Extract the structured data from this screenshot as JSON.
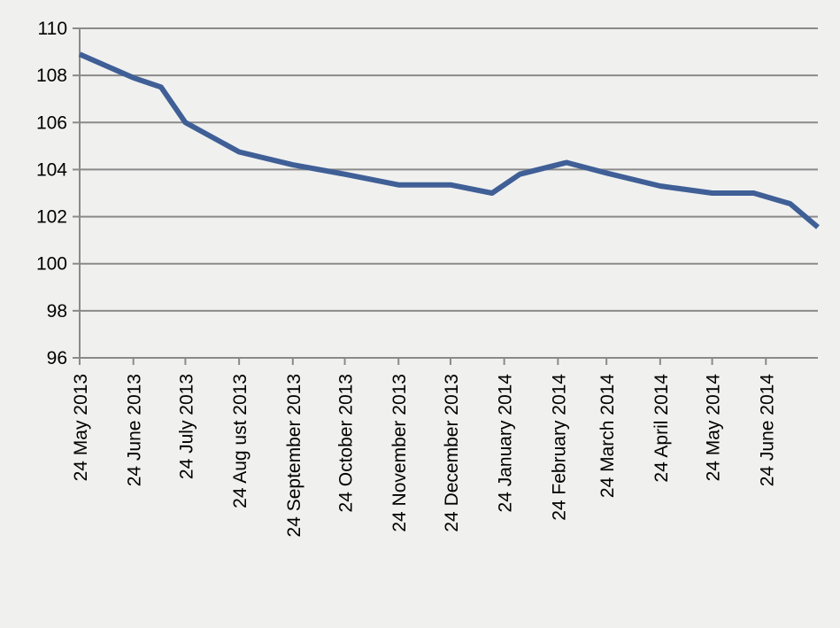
{
  "chart_data": {
    "type": "line",
    "title": "",
    "xlabel": "",
    "ylabel": "",
    "ylim": [
      96,
      110
    ],
    "yticks": [
      96,
      98,
      100,
      102,
      104,
      106,
      108,
      110
    ],
    "grid": true,
    "legend": "none",
    "xticks": [
      {
        "date": "2013-05-24",
        "label": "24 May 2013"
      },
      {
        "date": "2013-06-24",
        "label": "24 June 2013"
      },
      {
        "date": "2013-07-24",
        "label": "24 July 2013"
      },
      {
        "date": "2013-08-24",
        "label": "24 Aug ust 2013"
      },
      {
        "date": "2013-09-24",
        "label": "24 September 2013"
      },
      {
        "date": "2013-10-24",
        "label": "24 October 2013"
      },
      {
        "date": "2013-11-24",
        "label": "24 November 2013"
      },
      {
        "date": "2013-12-24",
        "label": "24 December 2013"
      },
      {
        "date": "2014-01-24",
        "label": "24 January 2014"
      },
      {
        "date": "2014-02-24",
        "label": "24 February 2014"
      },
      {
        "date": "2014-03-24",
        "label": "24 March 2014"
      },
      {
        "date": "2014-04-24",
        "label": "24 April 2014"
      },
      {
        "date": "2014-05-24",
        "label": "24 May 2014"
      },
      {
        "date": "2014-06-24",
        "label": "24 June 2014"
      }
    ],
    "xlim": [
      "2013-05-24",
      "2014-07-24"
    ],
    "series": [
      {
        "color": "#3f5f96",
        "points": [
          {
            "x": "2013-05-24",
            "y": 108.9
          },
          {
            "x": "2013-06-24",
            "y": 107.9
          },
          {
            "x": "2013-07-10",
            "y": 107.5
          },
          {
            "x": "2013-07-24",
            "y": 106.0
          },
          {
            "x": "2013-08-24",
            "y": 104.75
          },
          {
            "x": "2013-09-24",
            "y": 104.2
          },
          {
            "x": "2013-10-24",
            "y": 103.8
          },
          {
            "x": "2013-11-24",
            "y": 103.35
          },
          {
            "x": "2013-12-24",
            "y": 103.35
          },
          {
            "x": "2014-01-17",
            "y": 103.0
          },
          {
            "x": "2014-02-02",
            "y": 103.8
          },
          {
            "x": "2014-03-01",
            "y": 104.3
          },
          {
            "x": "2014-03-24",
            "y": 103.85
          },
          {
            "x": "2014-04-24",
            "y": 103.3
          },
          {
            "x": "2014-05-24",
            "y": 103.0
          },
          {
            "x": "2014-06-17",
            "y": 103.0
          },
          {
            "x": "2014-07-08",
            "y": 102.55
          },
          {
            "x": "2014-07-24",
            "y": 101.55
          }
        ]
      }
    ]
  }
}
